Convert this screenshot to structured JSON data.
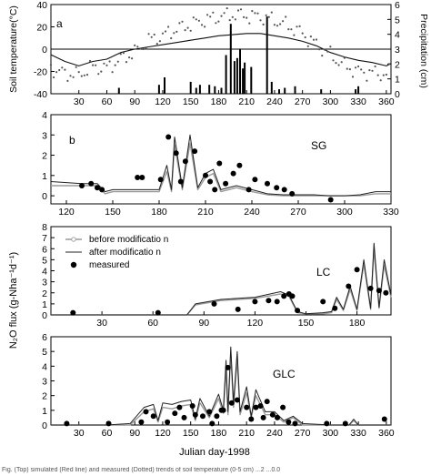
{
  "figure": {
    "x_label": "Julian day-1998",
    "caption": "Fig. (Top) simulated (Red line) and measured (Dotted) trends of soil temperature (0-5 cm) ...2 ...0.0"
  },
  "chart_data": [
    {
      "type": "line",
      "panel_label": "a",
      "ylabel": "Soil temperature(°C)",
      "y2label": "Precipitation (cm)",
      "xlim": [
        0,
        365
      ],
      "ylim": [
        -40,
        40
      ],
      "y2lim": [
        0,
        6
      ],
      "x_ticks": [
        30,
        60,
        90,
        120,
        150,
        180,
        210,
        240,
        270,
        300,
        330,
        360
      ],
      "y_ticks": [
        -40,
        -20,
        0,
        20,
        40
      ],
      "y2_ticks": [
        0,
        1,
        2,
        3,
        4,
        5,
        6
      ],
      "grid": false,
      "series": [
        {
          "style": "dotted-markers",
          "x": [
            0,
            15,
            30,
            45,
            60,
            75,
            90,
            105,
            120,
            135,
            150,
            165,
            180,
            195,
            210,
            225,
            240,
            255,
            270,
            285,
            300,
            315,
            330,
            345,
            360,
            365
          ],
          "y": [
            -17,
            -22,
            -23,
            -16,
            -17,
            -9,
            -3,
            8,
            12,
            18,
            22,
            26,
            29,
            31,
            30,
            29,
            26,
            21,
            14,
            4,
            -5,
            -15,
            -20,
            -21,
            -23,
            -20
          ]
        },
        {
          "style": "solid-line",
          "x": [
            0,
            15,
            30,
            45,
            60,
            75,
            90,
            105,
            120,
            135,
            150,
            165,
            180,
            195,
            210,
            225,
            240,
            255,
            270,
            285,
            300,
            315,
            330,
            345,
            360,
            365
          ],
          "y": [
            -5,
            -11,
            -15,
            -11,
            -9,
            -3,
            0,
            2,
            4,
            6,
            8,
            10,
            12,
            13,
            14,
            14,
            12,
            10,
            7,
            3,
            -3,
            -7,
            -10,
            -12,
            -15,
            -13
          ]
        },
        {
          "style": "bars-right-axis",
          "x": [
            73,
            116,
            122,
            150,
            156,
            160,
            170,
            176,
            183,
            188,
            193,
            197,
            200,
            203,
            206,
            208,
            215,
            232,
            237,
            245,
            251,
            262,
            290,
            327,
            330
          ],
          "y": [
            0.4,
            0.6,
            1.1,
            0.8,
            0.4,
            0.6,
            0.6,
            0.5,
            0.4,
            2.6,
            4.7,
            2.2,
            2.4,
            3.0,
            1.7,
            2.1,
            1.8,
            5.2,
            0.8,
            0.3,
            0.4,
            0.5,
            0.3,
            0.3,
            0.5
          ]
        }
      ],
      "reference_lines": [
        {
          "axis": "y",
          "value": 0
        }
      ]
    },
    {
      "type": "line",
      "panel_label": "b",
      "site_label": "SG",
      "xlim": [
        110,
        330
      ],
      "ylim": [
        -0.4,
        4
      ],
      "x_ticks": [
        120,
        150,
        180,
        210,
        240,
        270,
        300,
        330
      ],
      "y_ticks": [
        0,
        1,
        2,
        3,
        4
      ],
      "grid": false,
      "series": [
        {
          "style": "solid-dark",
          "x": [
            110,
            130,
            140,
            145,
            150,
            160,
            170,
            180,
            185,
            188,
            190,
            195,
            200,
            205,
            210,
            215,
            220,
            230,
            240,
            250,
            260,
            270,
            280,
            290,
            300,
            310,
            320,
            330
          ],
          "y": [
            0.7,
            0.6,
            0.6,
            0.2,
            0.3,
            0.3,
            0.3,
            0.3,
            1.5,
            0.3,
            2.9,
            0.4,
            3.0,
            0.4,
            1.1,
            1.3,
            0.3,
            0.5,
            0.3,
            0.1,
            0.05,
            0.05,
            0.05,
            0.0,
            0.0,
            0.05,
            0.2,
            0.2
          ]
        },
        {
          "style": "solid-grey",
          "x": [
            110,
            130,
            140,
            145,
            150,
            160,
            170,
            180,
            185,
            188,
            190,
            195,
            200,
            205,
            210,
            215,
            220,
            230,
            240,
            250,
            260,
            270,
            280,
            290,
            300,
            310,
            320,
            330
          ],
          "y": [
            0.5,
            0.5,
            0.5,
            0.1,
            0.2,
            0.2,
            0.2,
            0.2,
            1.2,
            0.2,
            2.5,
            0.3,
            2.6,
            0.3,
            0.9,
            1.1,
            0.2,
            0.4,
            0.2,
            0.05,
            0.0,
            0.0,
            0.0,
            0.0,
            0.0,
            0.0,
            0.1,
            0.1
          ]
        },
        {
          "style": "measured-points",
          "x": [
            130,
            136,
            140,
            143,
            166,
            169,
            181,
            186,
            191,
            194,
            197,
            203,
            210,
            213,
            216,
            219,
            223,
            228,
            232,
            238,
            242,
            250,
            256,
            261,
            266,
            291
          ],
          "y": [
            0.5,
            0.6,
            0.4,
            0.3,
            0.9,
            0.9,
            0.8,
            2.9,
            2.1,
            0.7,
            1.7,
            2.2,
            1.0,
            0.7,
            0.3,
            1.6,
            0.6,
            1.1,
            1.5,
            0.3,
            0.8,
            0.6,
            0.4,
            0.3,
            0.1,
            -0.2
          ]
        }
      ]
    },
    {
      "type": "line",
      "site_label": "LC",
      "ylabel": "N₂O flux (g-Nha⁻¹d⁻¹)",
      "xlim": [
        0,
        200
      ],
      "ylim": [
        0,
        8
      ],
      "x_ticks": [
        30,
        60,
        90,
        120,
        150,
        180
      ],
      "y_ticks": [
        0,
        1,
        2,
        3,
        4,
        5,
        6,
        7,
        8
      ],
      "grid": false,
      "legend": {
        "position": "top-left",
        "entries": [
          "before  modificatio n",
          "after  modificatio n",
          "measured"
        ]
      },
      "series": [
        {
          "name": "before  modificatio n",
          "style": "grey-line",
          "x": [
            0,
            30,
            60,
            80,
            85,
            100,
            120,
            135,
            140,
            145,
            150,
            160,
            165,
            168,
            172,
            176,
            180,
            184,
            188,
            190,
            193,
            196,
            200
          ],
          "y": [
            0.0,
            0.0,
            0.0,
            0.0,
            0.9,
            1.3,
            1.5,
            1.9,
            1.7,
            0.2,
            0.1,
            0.1,
            0.2,
            1.4,
            0.4,
            2.3,
            0.4,
            4.6,
            0.5,
            6.0,
            0.6,
            4.5,
            1.6
          ]
        },
        {
          "name": "after  modificatio n",
          "style": "dark-line",
          "x": [
            0,
            30,
            60,
            80,
            85,
            100,
            120,
            135,
            140,
            145,
            150,
            160,
            165,
            168,
            172,
            176,
            180,
            184,
            188,
            190,
            193,
            196,
            200
          ],
          "y": [
            0.0,
            0.0,
            0.0,
            0.0,
            1.0,
            1.4,
            1.6,
            2.1,
            1.8,
            0.3,
            0.1,
            0.2,
            0.3,
            1.6,
            0.5,
            2.6,
            0.5,
            5.0,
            0.6,
            6.5,
            0.7,
            5.0,
            1.8
          ]
        },
        {
          "name": "measured",
          "style": "measured-points",
          "x": [
            13,
            63,
            96,
            110,
            120,
            128,
            133,
            137,
            140,
            142,
            145,
            160,
            167,
            175,
            180,
            188,
            193,
            197
          ],
          "y": [
            0.2,
            0.2,
            1.0,
            0.5,
            1.2,
            1.3,
            1.2,
            1.7,
            1.9,
            1.7,
            0.4,
            1.2,
            0.6,
            2.6,
            4.1,
            2.4,
            2.2,
            2.0
          ]
        }
      ]
    },
    {
      "type": "line",
      "site_label": "GLC",
      "xlim": [
        0,
        365
      ],
      "ylim": [
        0,
        6
      ],
      "x_ticks": [
        30,
        60,
        90,
        120,
        150,
        180,
        210,
        240,
        270,
        300,
        330,
        360
      ],
      "y_ticks": [
        0,
        1,
        2,
        3,
        4,
        5,
        6
      ],
      "grid": false,
      "series": [
        {
          "style": "dark-line",
          "x": [
            0,
            60,
            85,
            100,
            110,
            115,
            120,
            130,
            140,
            150,
            155,
            160,
            170,
            180,
            185,
            188,
            190,
            193,
            196,
            200,
            203,
            210,
            215,
            220,
            230,
            240,
            250,
            260,
            270,
            300,
            320,
            325,
            330,
            360,
            365
          ],
          "y": [
            0.0,
            0.0,
            0.1,
            1.2,
            1.4,
            0.3,
            1.5,
            1.4,
            1.6,
            1.7,
            0.4,
            1.8,
            0.6,
            2.1,
            1.0,
            4.4,
            0.9,
            5.3,
            1.5,
            5.0,
            0.9,
            2.6,
            0.6,
            2.4,
            0.9,
            0.9,
            0.3,
            0.6,
            0.1,
            0.0,
            0.0,
            0.4,
            0.0,
            0.0,
            0.0
          ]
        },
        {
          "style": "grey-line",
          "x": [
            0,
            60,
            85,
            100,
            110,
            115,
            120,
            130,
            140,
            150,
            155,
            160,
            170,
            180,
            185,
            188,
            190,
            193,
            196,
            200,
            203,
            210,
            215,
            220,
            230,
            240,
            250,
            260,
            270,
            300,
            320,
            325,
            330,
            360,
            365
          ],
          "y": [
            0.0,
            0.0,
            0.0,
            0.9,
            1.1,
            0.2,
            1.2,
            1.1,
            1.3,
            1.4,
            0.3,
            1.5,
            0.5,
            1.8,
            0.8,
            3.9,
            0.7,
            4.8,
            1.2,
            4.5,
            0.7,
            2.2,
            0.5,
            2.0,
            0.7,
            0.7,
            0.2,
            0.5,
            0.0,
            0.0,
            0.0,
            0.3,
            0.0,
            0.0,
            0.0
          ]
        },
        {
          "style": "measured-points",
          "x": [
            17,
            62,
            97,
            102,
            110,
            125,
            133,
            138,
            143,
            152,
            155,
            163,
            170,
            173,
            178,
            183,
            185,
            190,
            194,
            200,
            210,
            215,
            220,
            225,
            228,
            232,
            238,
            243,
            249,
            255,
            262,
            296,
            316,
            358
          ],
          "y": [
            0.1,
            0.1,
            0.2,
            0.9,
            0.6,
            0.2,
            0.8,
            1.2,
            0.5,
            1.3,
            0.7,
            0.6,
            0.9,
            0.1,
            0.6,
            1.0,
            1.0,
            3.9,
            1.5,
            1.7,
            1.2,
            0.4,
            1.2,
            1.3,
            0.5,
            1.6,
            0.7,
            0.5,
            1.2,
            0.2,
            0.1,
            0.1,
            0.1,
            0.4
          ]
        }
      ]
    }
  ]
}
